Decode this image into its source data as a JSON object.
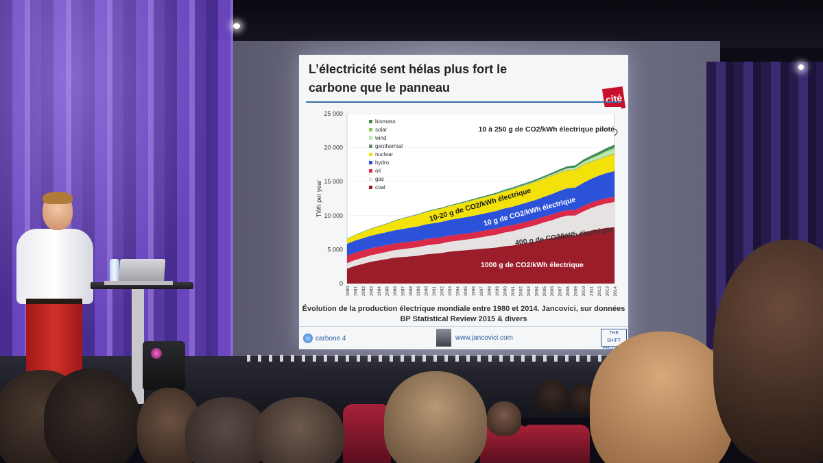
{
  "slide": {
    "title_line1": "L’électricité sent hélas plus fort le",
    "title_line2": "carbone que le panneau",
    "logo_text": "cité",
    "caption_line1": "Évolution de la production électrique mondiale entre 1980 et 2014. Jancovici, sur données",
    "caption_line2": "BP Statistical Review 2015 & divers",
    "footer_left": "carbone 4",
    "footer_url": "www.jancovici.com",
    "footer_right": "THE SHIFT PROJECT"
  },
  "chart_data": {
    "type": "area",
    "stacked": true,
    "ylabel": "TWh per year",
    "ylim": [
      0,
      25000
    ],
    "yticks": [
      "0",
      "5 000",
      "10 000",
      "15 000",
      "20 000",
      "25 000"
    ],
    "years": [
      "1980",
      "1981",
      "1982",
      "1983",
      "1984",
      "1985",
      "1986",
      "1987",
      "1988",
      "1989",
      "1990",
      "1991",
      "1992",
      "1993",
      "1994",
      "1995",
      "1996",
      "1997",
      "1998",
      "1999",
      "2000",
      "2001",
      "2002",
      "2003",
      "2004",
      "2005",
      "2006",
      "2007",
      "2008",
      "2009",
      "2010",
      "2011",
      "2012",
      "2013",
      "2014"
    ],
    "legend_position": "top-left",
    "series": [
      {
        "name": "coal",
        "color": "#9c1d2a",
        "values": [
          2200,
          2600,
          2900,
          3200,
          3400,
          3600,
          3800,
          3900,
          4000,
          4100,
          4300,
          4400,
          4500,
          4700,
          4800,
          4900,
          5000,
          5100,
          5200,
          5300,
          5500,
          5600,
          5800,
          6000,
          6200,
          6500,
          6700,
          7000,
          7200,
          7100,
          7500,
          7800,
          8000,
          8200,
          8300
        ]
      },
      {
        "name": "gas",
        "color": "#e6e2e2",
        "values": [
          800,
          850,
          900,
          950,
          1000,
          1050,
          1100,
          1150,
          1200,
          1250,
          1300,
          1350,
          1400,
          1450,
          1500,
          1550,
          1600,
          1700,
          1800,
          1900,
          2000,
          2100,
          2200,
          2300,
          2400,
          2500,
          2600,
          2700,
          2800,
          2900,
          3100,
          3300,
          3500,
          3600,
          3700
        ]
      },
      {
        "name": "oil",
        "color": "#d92a48",
        "values": [
          1100,
          1080,
          1060,
          1040,
          1020,
          1000,
          980,
          970,
          960,
          950,
          940,
          930,
          920,
          910,
          900,
          900,
          900,
          900,
          900,
          900,
          900,
          890,
          880,
          870,
          860,
          850,
          840,
          830,
          820,
          810,
          800,
          790,
          780,
          770,
          760
        ]
      },
      {
        "name": "hydro",
        "color": "#2b52d8",
        "values": [
          1750,
          1780,
          1810,
          1840,
          1870,
          1900,
          1950,
          2000,
          2050,
          2100,
          2150,
          2200,
          2250,
          2300,
          2350,
          2400,
          2450,
          2500,
          2550,
          2600,
          2650,
          2700,
          2750,
          2800,
          2850,
          2900,
          3000,
          3100,
          3200,
          3300,
          3400,
          3500,
          3600,
          3700,
          3800
        ]
      },
      {
        "name": "nuclear",
        "color": "#f2e20a",
        "values": [
          700,
          800,
          900,
          1000,
          1100,
          1200,
          1350,
          1500,
          1600,
          1700,
          1800,
          1900,
          1950,
          2000,
          2100,
          2200,
          2300,
          2350,
          2400,
          2450,
          2500,
          2550,
          2600,
          2600,
          2650,
          2650,
          2700,
          2650,
          2650,
          2600,
          2650,
          2500,
          2400,
          2450,
          2500
        ]
      },
      {
        "name": "geothermal",
        "color": "#6c8c6c",
        "values": [
          15,
          16,
          17,
          18,
          19,
          20,
          21,
          22,
          23,
          24,
          26,
          28,
          30,
          32,
          34,
          36,
          38,
          40,
          42,
          44,
          46,
          48,
          50,
          52,
          54,
          56,
          58,
          60,
          62,
          64,
          66,
          68,
          70,
          72,
          74
        ]
      },
      {
        "name": "wind",
        "color": "#bfe6ae",
        "values": [
          0,
          0,
          0,
          0,
          0,
          1,
          1,
          2,
          3,
          4,
          4,
          5,
          6,
          7,
          8,
          9,
          10,
          12,
          15,
          20,
          30,
          40,
          55,
          70,
          90,
          110,
          130,
          170,
          220,
          280,
          340,
          430,
          520,
          630,
          700
        ]
      },
      {
        "name": "solar",
        "color": "#8ac65c",
        "values": [
          0,
          0,
          0,
          0,
          0,
          0,
          0,
          0,
          0,
          0,
          0,
          0,
          0,
          0,
          0,
          0,
          0,
          0,
          0,
          0,
          1,
          2,
          3,
          4,
          5,
          6,
          8,
          10,
          15,
          20,
          30,
          60,
          100,
          130,
          180
        ]
      },
      {
        "name": "biomass",
        "color": "#3d8a56",
        "values": [
          40,
          45,
          50,
          55,
          60,
          65,
          70,
          75,
          80,
          85,
          90,
          95,
          100,
          110,
          120,
          130,
          140,
          150,
          160,
          170,
          180,
          190,
          200,
          210,
          220,
          240,
          260,
          280,
          300,
          320,
          340,
          360,
          380,
          400,
          420
        ]
      }
    ],
    "annotations": [
      {
        "text": "10 à 250 g de CO2/kWh électrique piloté",
        "color": "#222222"
      },
      {
        "text": "10-20 g de CO2/kWh électrique",
        "color": "#1a1a1a"
      },
      {
        "text": "10 g de CO2/kWh électrique",
        "color": "#ffffff"
      },
      {
        "text": "400 g de CO2/kWh électrique",
        "color": "#333333"
      },
      {
        "text": "1000 g de CO2/kWh électrique",
        "color": "#ffffff"
      }
    ]
  }
}
